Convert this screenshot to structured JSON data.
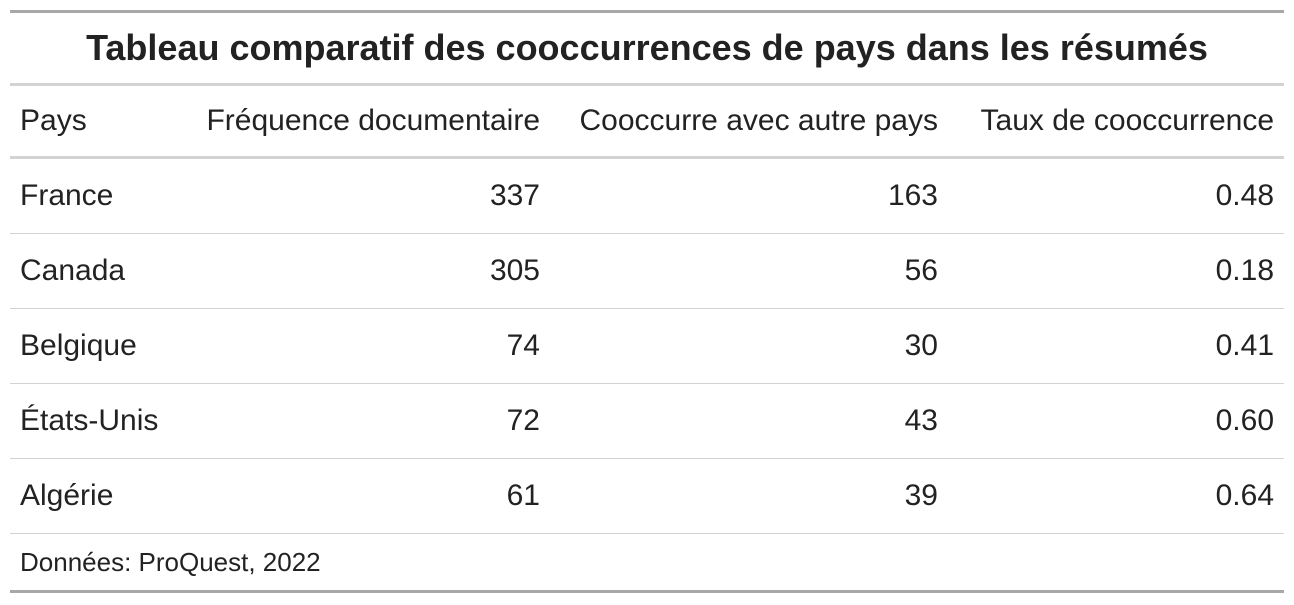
{
  "title": "Tableau comparatif des cooccurrences de pays dans les résumés",
  "columns": [
    "Pays",
    "Fréquence documentaire",
    "Cooccurre avec autre pays",
    "Taux de cooccurrence"
  ],
  "rows": [
    {
      "pays": "France",
      "frequence": "337",
      "cooccurre": "163",
      "taux": "0.48"
    },
    {
      "pays": "Canada",
      "frequence": "305",
      "cooccurre": "56",
      "taux": "0.18"
    },
    {
      "pays": "Belgique",
      "frequence": "74",
      "cooccurre": "30",
      "taux": "0.41"
    },
    {
      "pays": "États-Unis",
      "frequence": "72",
      "cooccurre": "43",
      "taux": "0.60"
    },
    {
      "pays": "Algérie",
      "frequence": "61",
      "cooccurre": "39",
      "taux": "0.64"
    }
  ],
  "source": "Données: ProQuest, 2022"
}
